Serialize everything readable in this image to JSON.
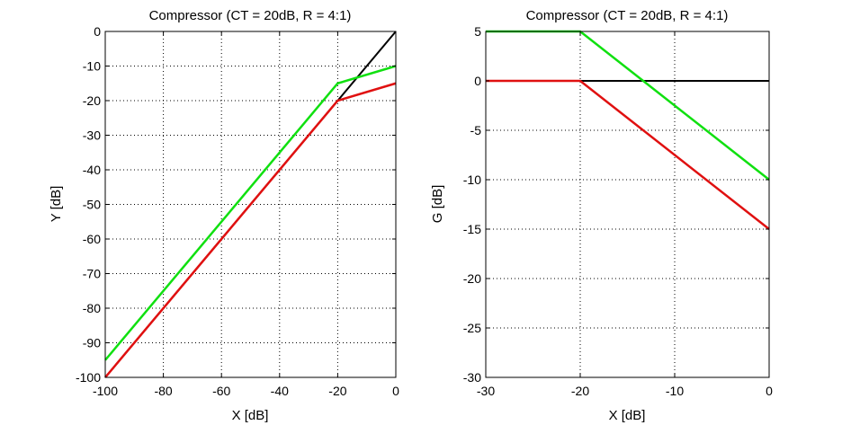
{
  "chart_data": [
    {
      "type": "line",
      "title": "Compressor (CT = 20dB, R = 4:1)",
      "xlabel": "X [dB]",
      "ylabel": "Y [dB]",
      "xlim": [
        -100,
        0
      ],
      "ylim": [
        -100,
        0
      ],
      "xticks": [
        -100,
        -80,
        -60,
        -40,
        -20,
        0
      ],
      "yticks": [
        -100,
        -90,
        -80,
        -70,
        -60,
        -50,
        -40,
        -30,
        -20,
        -10,
        0
      ],
      "grid": true,
      "series": [
        {
          "color": "#000000",
          "x": [
            -100,
            0
          ],
          "y": [
            -100,
            0
          ]
        },
        {
          "color": "#e01010",
          "x": [
            -100,
            -20,
            0
          ],
          "y": [
            -100,
            -20,
            -15
          ]
        },
        {
          "color": "#10e010",
          "x": [
            -100,
            -20,
            0
          ],
          "y": [
            -95,
            -15,
            -10
          ]
        }
      ]
    },
    {
      "type": "line",
      "title": "Compressor (CT = 20dB, R = 4:1)",
      "xlabel": "X [dB]",
      "ylabel": "G [dB]",
      "xlim": [
        -30,
        0
      ],
      "ylim": [
        -30,
        5
      ],
      "xticks": [
        -30,
        -20,
        -10,
        0
      ],
      "yticks": [
        -30,
        -25,
        -20,
        -15,
        -10,
        -5,
        0,
        5
      ],
      "grid": true,
      "series": [
        {
          "color": "#000000",
          "x": [
            -30,
            0
          ],
          "y": [
            0,
            0
          ]
        },
        {
          "color": "#10e010",
          "x": [
            -30,
            -20,
            0
          ],
          "y": [
            5,
            5,
            -10
          ]
        },
        {
          "color": "#e01010",
          "x": [
            -30,
            -20,
            0
          ],
          "y": [
            0,
            0,
            -15
          ]
        }
      ]
    }
  ]
}
